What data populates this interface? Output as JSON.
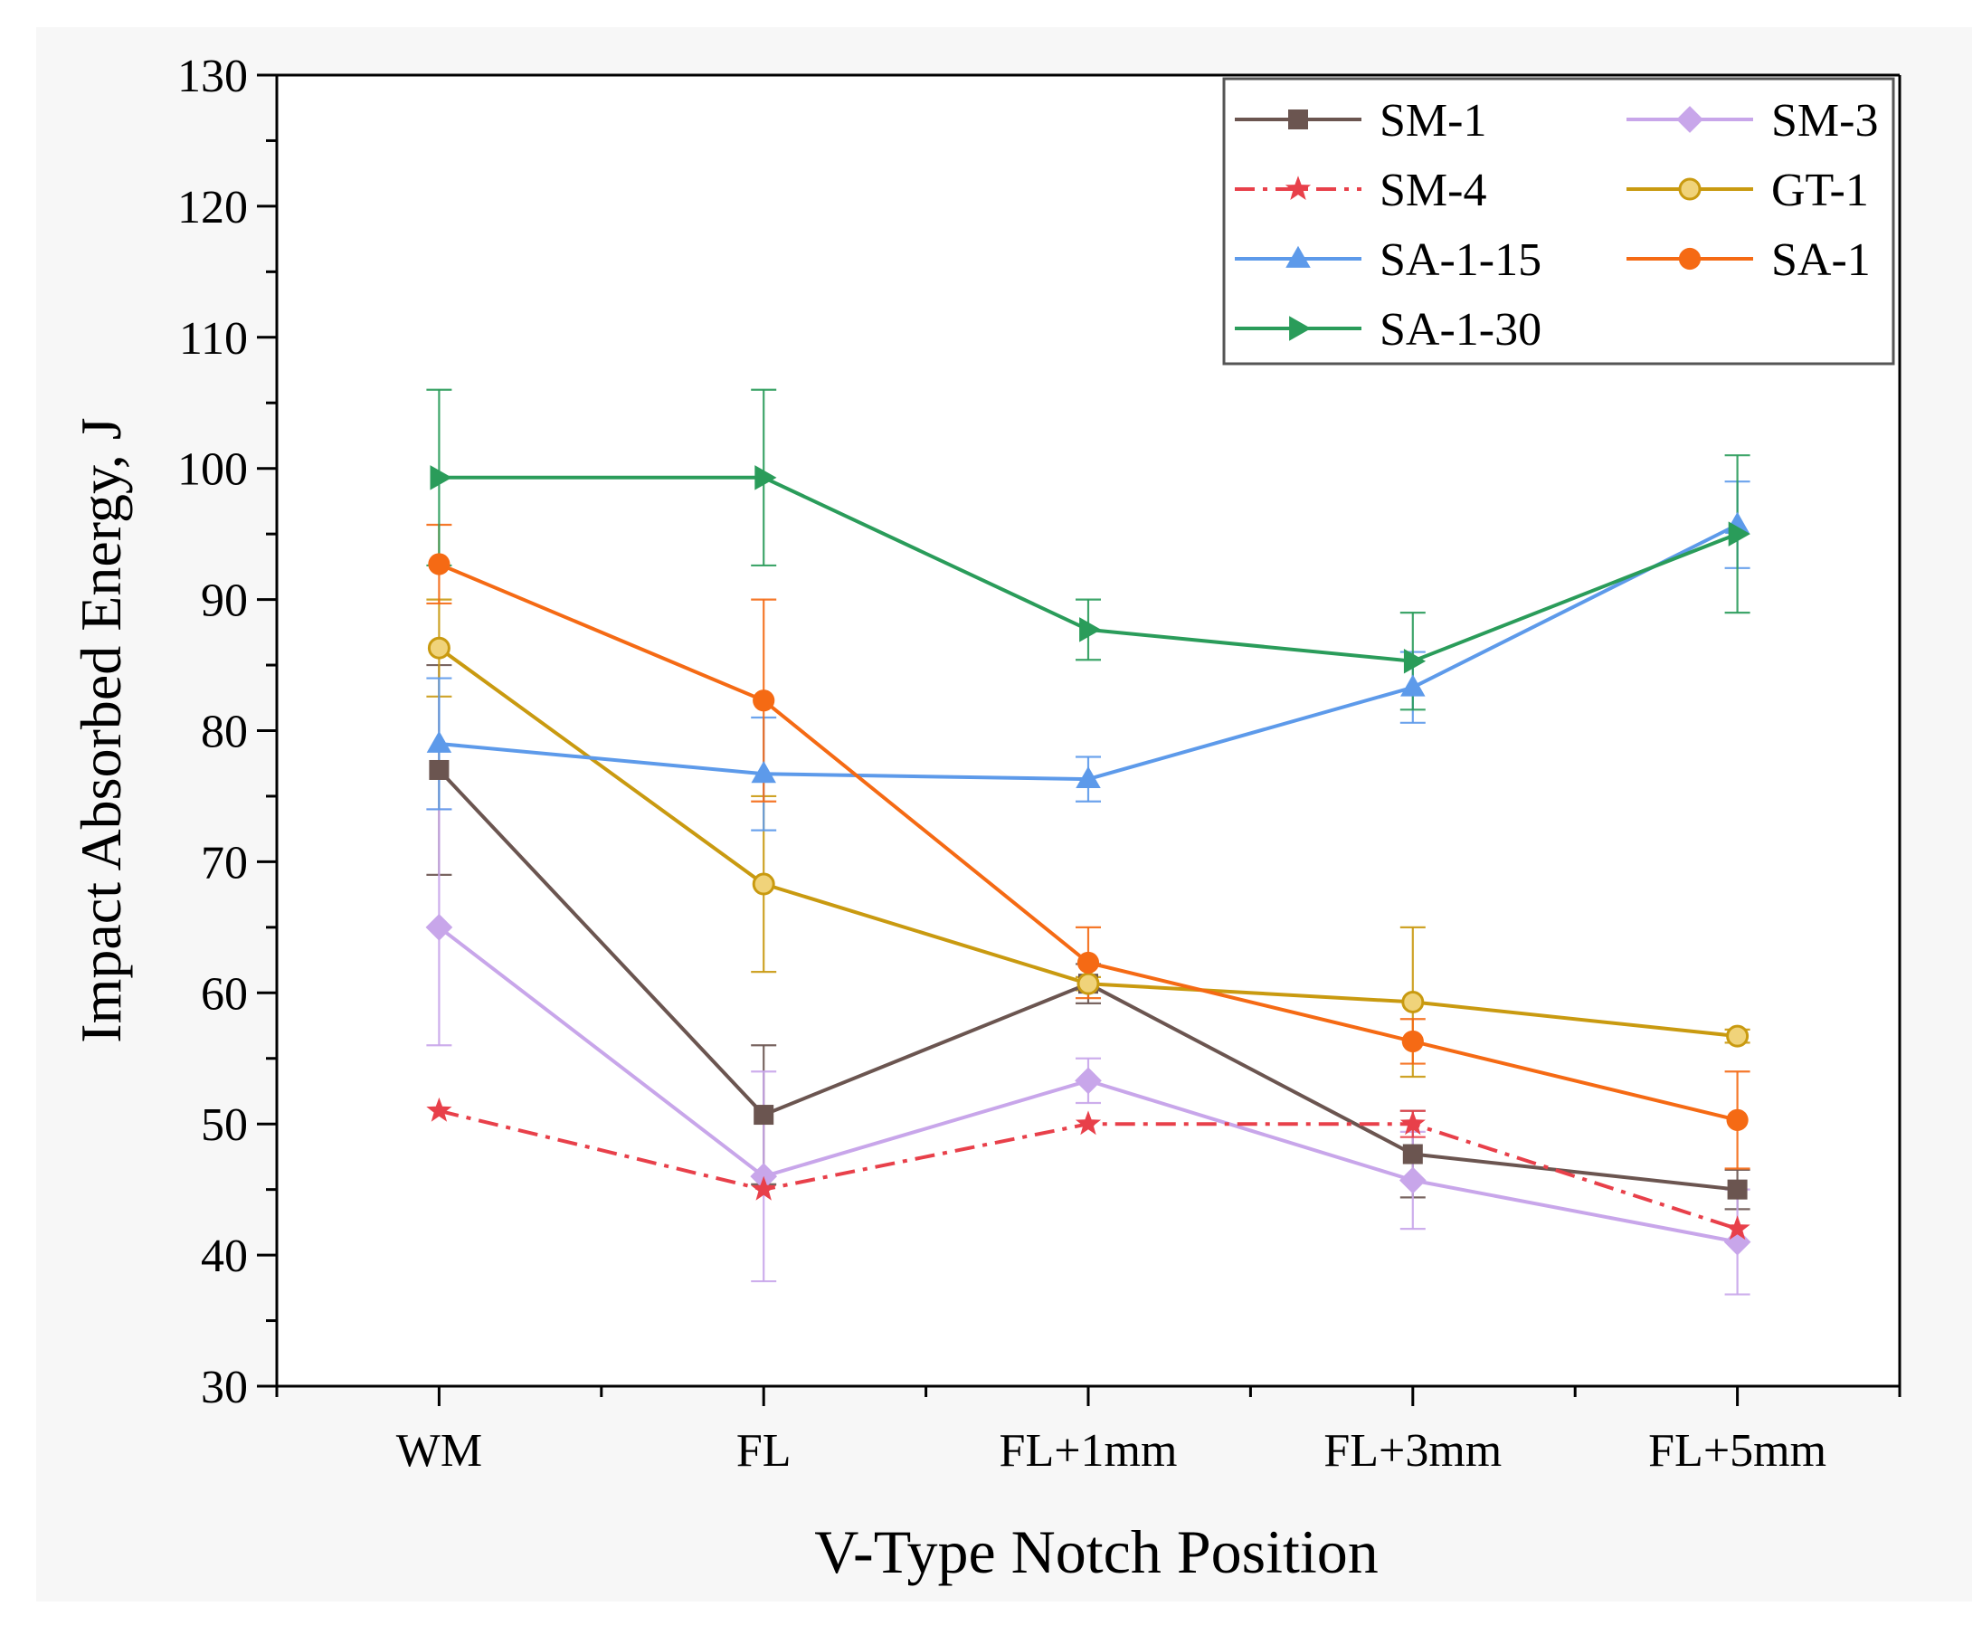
{
  "chart_data": {
    "type": "line",
    "title": "",
    "xlabel": "V-Type Notch Position",
    "ylabel": "Impact Absorbed Energy, J",
    "categories": [
      "WM",
      "FL",
      "FL+1mm",
      "FL+3mm",
      "FL+5mm"
    ],
    "ylim": [
      30,
      130
    ],
    "yticks": [
      "30",
      "40",
      "50",
      "60",
      "70",
      "80",
      "90",
      "100",
      "110",
      "120",
      "130"
    ],
    "grid": false,
    "legend_position": "top-right",
    "series": [
      {
        "name": "SM-1",
        "color": "#6b5550",
        "marker": "square",
        "dash": "solid",
        "values": [
          77,
          50.7,
          60.7,
          47.7,
          45
        ],
        "errors": [
          8,
          5.3,
          1.5,
          3.3,
          1.5
        ]
      },
      {
        "name": "SM-3",
        "color": "#c8a6ea",
        "marker": "diamond",
        "dash": "solid",
        "values": [
          65,
          46,
          53.3,
          45.7,
          41
        ],
        "errors": [
          9,
          8,
          1.7,
          3.7,
          4
        ]
      },
      {
        "name": "SM-4",
        "color": "#e8404a",
        "marker": "star",
        "dash": "dashdot",
        "values": [
          51,
          45,
          50,
          50,
          42
        ],
        "errors": [
          0,
          0,
          0,
          1,
          0
        ]
      },
      {
        "name": "GT-1",
        "color": "#c99a10",
        "marker": "circle-open",
        "dash": "solid",
        "values": [
          86.3,
          68.3,
          60.7,
          59.3,
          56.7
        ],
        "errors": [
          3.7,
          6.7,
          0.5,
          5.7,
          0.5
        ]
      },
      {
        "name": "SA-1-15",
        "color": "#5d9aea",
        "marker": "triangle-up",
        "dash": "solid",
        "values": [
          79,
          76.7,
          76.3,
          83.3,
          95.7
        ],
        "errors": [
          5,
          4.3,
          1.7,
          2.7,
          3.3
        ]
      },
      {
        "name": "SA-1",
        "color": "#f56a14",
        "marker": "circle",
        "dash": "solid",
        "values": [
          92.7,
          82.3,
          62.3,
          56.3,
          50.3
        ],
        "errors": [
          3,
          7.7,
          2.7,
          1.7,
          3.7
        ]
      },
      {
        "name": "SA-1-30",
        "color": "#2a9c5a",
        "marker": "triangle-right",
        "dash": "solid",
        "values": [
          99.3,
          99.3,
          87.7,
          85.3,
          95
        ],
        "errors": [
          6.7,
          6.7,
          2.3,
          3.7,
          6
        ]
      }
    ],
    "legend_order": [
      "SM-1",
      "SM-3",
      "SM-4",
      "GT-1",
      "SA-1-15",
      "SA-1",
      "SA-1-30"
    ]
  }
}
